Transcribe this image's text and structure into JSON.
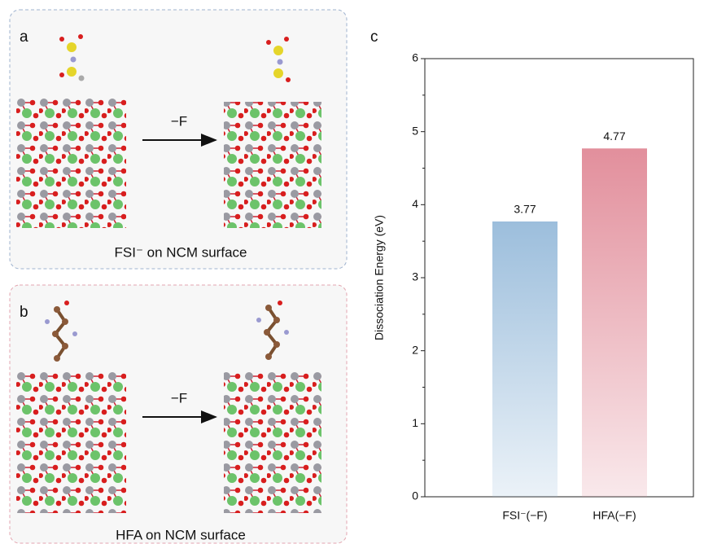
{
  "panels": [
    {
      "label": "a",
      "arrow_label": "−F",
      "caption": "FSI⁻ on NCM surface"
    },
    {
      "label": "b",
      "arrow_label": "−F",
      "caption": "HFA on NCM surface"
    }
  ],
  "chart_data": {
    "type": "bar",
    "panel_label": "c",
    "y_label": "Dissociation Energy (eV)",
    "categories": [
      "FSI⁻(−F)",
      "HFA(−F)"
    ],
    "values": [
      3.77,
      4.77
    ],
    "colors": [
      "#9cbedc",
      "#e28f9c"
    ],
    "ylim": [
      0,
      6
    ],
    "yticks": [
      0,
      1,
      2,
      3,
      4,
      5,
      6
    ]
  }
}
